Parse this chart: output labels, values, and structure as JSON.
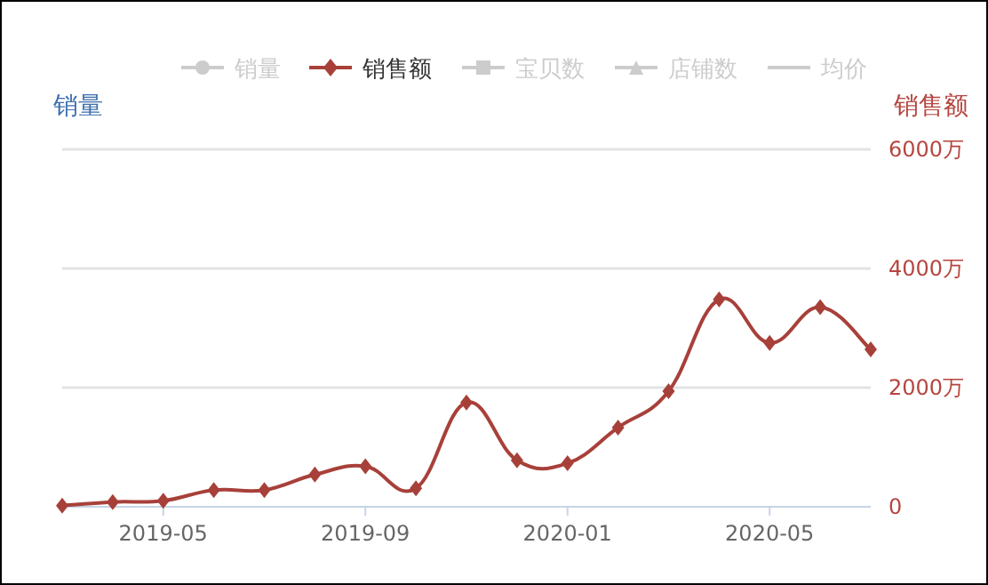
{
  "chart_data": {
    "type": "line",
    "categories": [
      null,
      null,
      "2019-05",
      null,
      null,
      null,
      "2019-09",
      null,
      null,
      null,
      "2020-01",
      null,
      null,
      null,
      "2020-05",
      null,
      null
    ],
    "series": [
      {
        "name": "销量",
        "color": "#cccccc",
        "marker": "circle",
        "values": [
          null,
          null,
          null,
          null,
          null,
          null,
          null,
          null,
          null,
          null,
          null,
          null,
          null,
          null,
          null,
          null,
          null
        ]
      },
      {
        "name": "销售额",
        "color": "#a8403a",
        "marker": "diamond",
        "axis": "y2",
        "values": [
          20,
          80,
          100,
          280,
          280,
          540,
          680,
          310,
          1750,
          780,
          730,
          1330,
          1940,
          3480,
          2750,
          3350,
          2640
        ]
      },
      {
        "name": "宝贝数",
        "color": "#cccccc",
        "marker": "square",
        "values": [
          null,
          null,
          null,
          null,
          null,
          null,
          null,
          null,
          null,
          null,
          null,
          null,
          null,
          null,
          null,
          null,
          null
        ]
      },
      {
        "name": "店铺数",
        "color": "#cccccc",
        "marker": "triangle",
        "values": [
          null,
          null,
          null,
          null,
          null,
          null,
          null,
          null,
          null,
          null,
          null,
          null,
          null,
          null,
          null,
          null,
          null
        ]
      },
      {
        "name": "均价",
        "color": "#cccccc",
        "values": [
          null,
          null,
          null,
          null,
          null,
          null,
          null,
          null,
          null,
          null,
          null,
          null,
          null,
          null,
          null,
          null,
          null
        ]
      }
    ],
    "ylabel": "销量",
    "y2label": "销售额",
    "y2lim": [
      0,
      6000
    ],
    "y2ticks": [
      0,
      {
        "value": 2000,
        "label": "2000万"
      },
      {
        "value": 4000,
        "label": "4000万"
      },
      {
        "value": 6000,
        "label": "6000万"
      }
    ],
    "grid": true,
    "legend": "top",
    "line_style": "solid"
  }
}
